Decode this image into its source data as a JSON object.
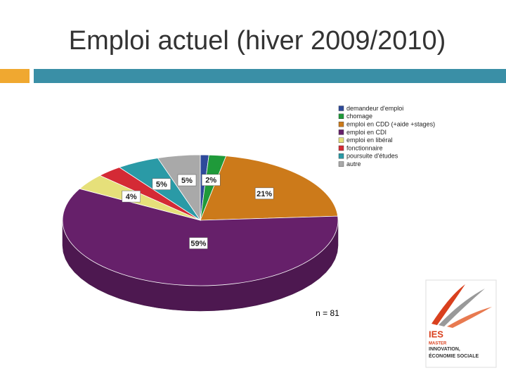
{
  "chart_data": {
    "type": "pie",
    "title": "Emploi actuel (hiver 2009/2010)",
    "categories": [
      "demandeur d'emploi",
      "chomage",
      "emploi en CDD (+aide +stages)",
      "emploi en CDI",
      "emploi en libéral",
      "fonctionnaire",
      "poursuite d'études",
      "autre"
    ],
    "values": [
      1,
      2,
      21,
      59,
      4,
      3,
      5,
      5
    ],
    "value_labels": [
      null,
      "2%",
      "21%",
      "59%",
      "4%",
      null,
      "5%",
      "5%"
    ],
    "colors": [
      "#2e4a9a",
      "#1f9a3a",
      "#cc7a1a",
      "#66206a",
      "#e6e07a",
      "#d42a35",
      "#2a9aa6",
      "#a9a9a9"
    ],
    "legend": "right",
    "annotation": "n = 81"
  },
  "logo": {
    "title": "IES",
    "line1": "MASTER",
    "line2": "INNOVATION,",
    "line3": "ÉCONOMIE SOCIALE"
  }
}
